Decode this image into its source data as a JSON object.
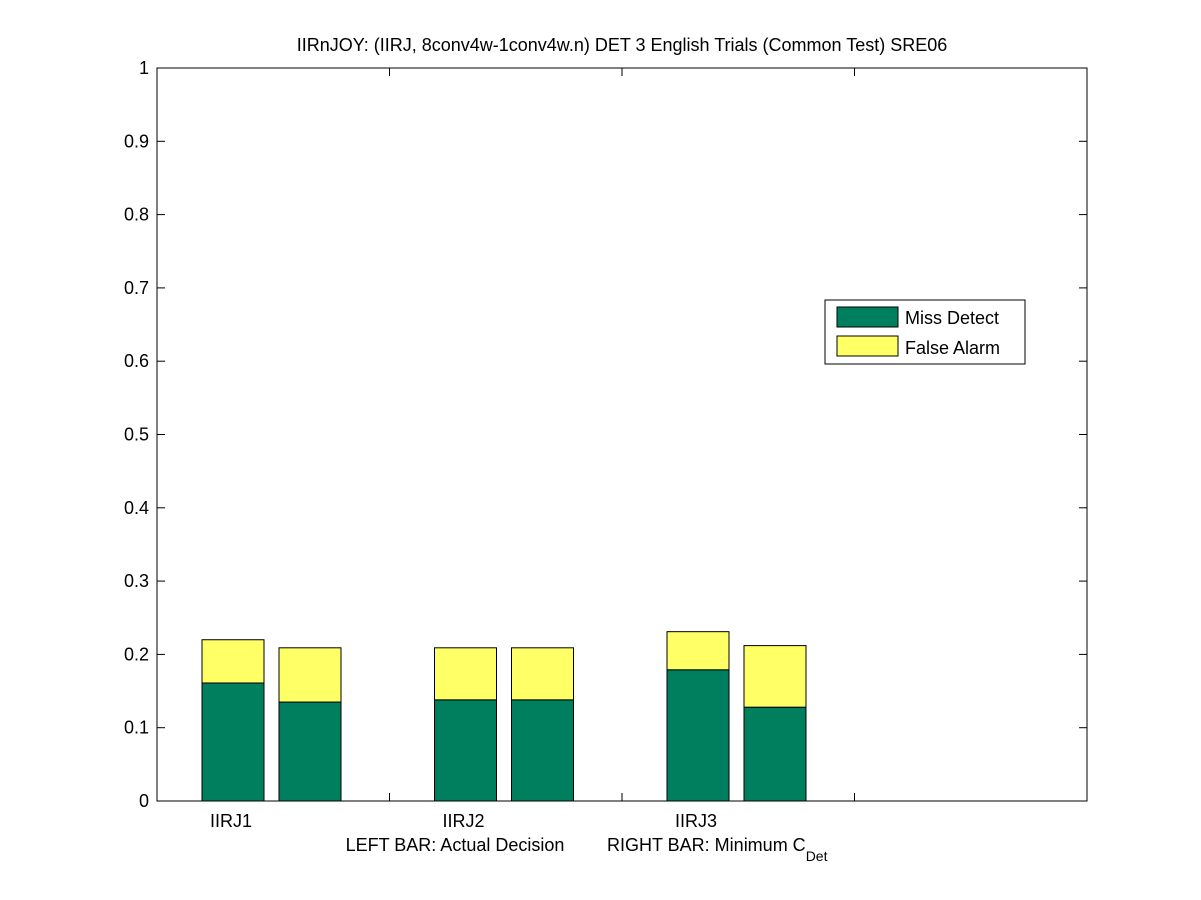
{
  "chart_data": {
    "type": "bar",
    "stacked": true,
    "title": "IIRnJOY: (IIRJ, 8conv4w-1conv4w.n) DET 3 English Trials (Common Test) SRE06",
    "xlabel_left": "LEFT BAR: Actual Decision",
    "xlabel_right_main": "RIGHT BAR: Minimum C",
    "xlabel_right_sub": "Det",
    "ylim": [
      0,
      1
    ],
    "yticks": [
      "0",
      "0.1",
      "0.2",
      "0.3",
      "0.4",
      "0.5",
      "0.6",
      "0.7",
      "0.8",
      "0.9",
      "1"
    ],
    "groups": [
      "IIRJ1",
      "IIRJ2",
      "IIRJ3"
    ],
    "series": [
      {
        "name": "Miss Detect",
        "color": "#007f5f",
        "values": [
          0.161,
          0.135,
          0.138,
          0.138,
          0.179,
          0.128
        ]
      },
      {
        "name": "False Alarm",
        "color": "#ffff66",
        "values": [
          0.059,
          0.074,
          0.071,
          0.071,
          0.052,
          0.084
        ]
      }
    ],
    "bar_order_note": "left bar, right bar per group",
    "legend_position": "upper-right",
    "grid": false
  }
}
